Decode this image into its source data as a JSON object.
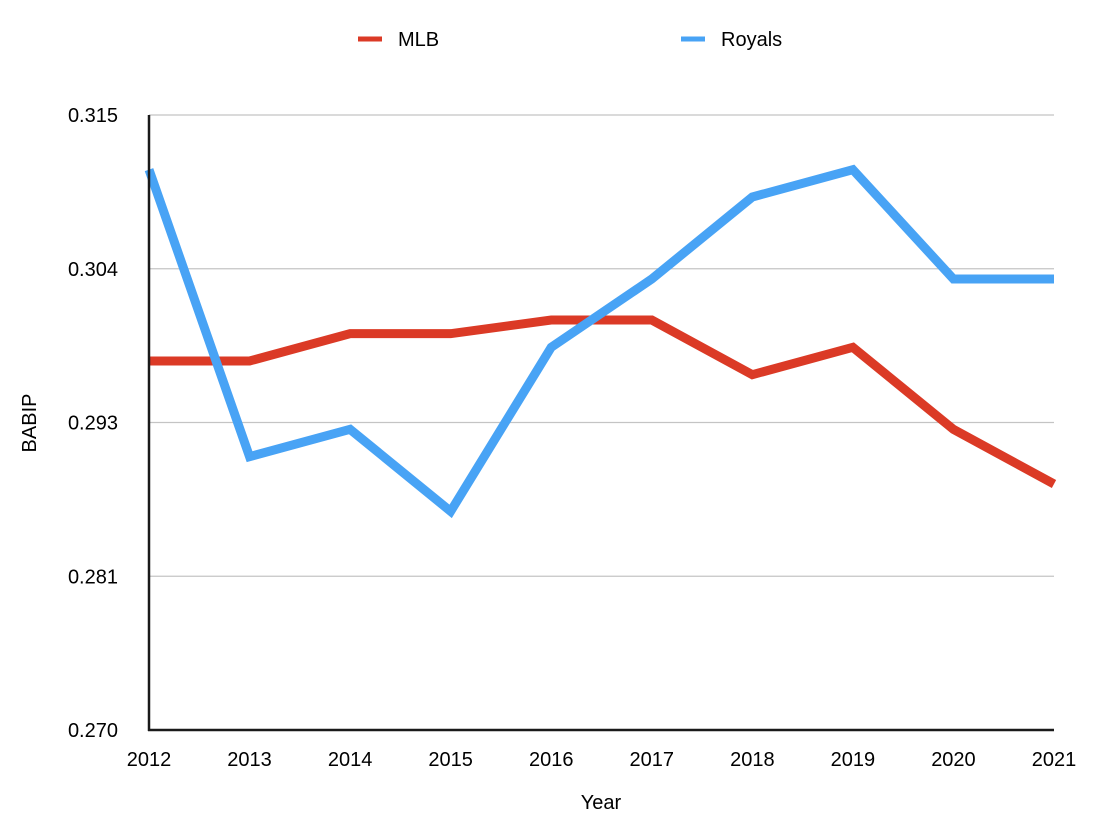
{
  "chart_data": {
    "type": "line",
    "title": "",
    "xlabel": "Year",
    "ylabel": "BABIP",
    "categories": [
      "2012",
      "2013",
      "2014",
      "2015",
      "2016",
      "2017",
      "2018",
      "2019",
      "2020",
      "2021"
    ],
    "ylim": [
      0.27,
      0.315
    ],
    "y_ticks": [
      "0.270",
      "0.281",
      "0.293",
      "0.304",
      "0.315"
    ],
    "grid": true,
    "legend_position": "top",
    "series": [
      {
        "name": "MLB",
        "color": "#db3a26",
        "values": [
          0.297,
          0.297,
          0.299,
          0.299,
          0.3,
          0.3,
          0.296,
          0.298,
          0.292,
          0.288
        ]
      },
      {
        "name": "Royals",
        "color": "#48a3f5",
        "values": [
          0.311,
          0.29,
          0.292,
          0.286,
          0.298,
          0.303,
          0.309,
          0.311,
          0.303,
          0.303
        ]
      }
    ]
  }
}
